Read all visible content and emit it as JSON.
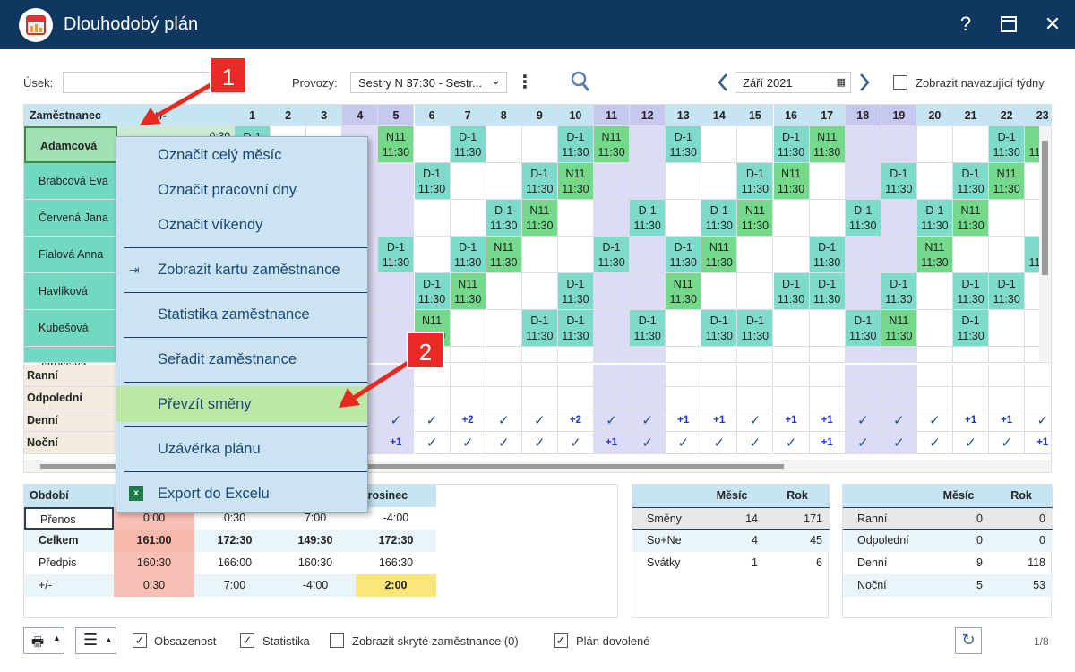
{
  "window": {
    "title": "Dlouhodobý plán",
    "help": "?",
    "maximize": "☐",
    "close": "✕"
  },
  "toolbar": {
    "usek_label": "Úsek:",
    "provozy_label": "Provozy:",
    "provozy_value": "Sestry N 37:30 - Sestr...",
    "more": "⋮",
    "month_value": "Září 2021",
    "follow_weeks": "Zobrazit navazující týdny"
  },
  "grid": {
    "corner": "Zaměstnanec",
    "col_diff": "+/-",
    "days": [
      "1",
      "2",
      "3",
      "4",
      "5",
      "6",
      "7",
      "8",
      "9",
      "10",
      "11",
      "12",
      "13",
      "14",
      "15",
      "16",
      "17",
      "18",
      "19",
      "20",
      "21",
      "22",
      "23"
    ],
    "weekend_days": [
      4,
      5,
      11,
      12,
      18,
      19
    ],
    "rows": [
      {
        "name": "Adamcová Jana",
        "diff": "0:30",
        "shifts": {
          "1": "D-1",
          "5": "N11",
          "7": "D-1",
          "10": "D-1",
          "11": "N11",
          "13": "D-1",
          "16": "D-1",
          "17": "N11",
          "22": "D-1",
          "23": "N"
        }
      },
      {
        "name": "Brabcová Eva",
        "diff": "",
        "shifts": {
          "6": "D-1",
          "9": "D-1",
          "10": "N11",
          "15": "D-1",
          "16": "N11",
          "19": "D-1",
          "21": "D-1",
          "22": "N11"
        }
      },
      {
        "name": "Červená Jana",
        "diff": "",
        "shifts": {
          "8": "D-1",
          "9": "N11",
          "12": "D-1",
          "14": "D-1",
          "15": "N11",
          "18": "D-1",
          "20": "D-1",
          "21": "N11"
        }
      },
      {
        "name": "Fialová Anna",
        "diff": "",
        "shifts": {
          "5": "D-1",
          "7": "D-1",
          "8": "N11",
          "11": "D-1",
          "13": "D-1",
          "14": "N11",
          "17": "D-1",
          "20": "N11",
          "23": "D"
        }
      },
      {
        "name": "Havlíková Lenka",
        "diff": "",
        "shifts": {
          "6": "D-1",
          "7": "N11",
          "10": "D-1",
          "13": "N11",
          "16": "D-1",
          "17": "D-1",
          "19": "D-1",
          "21": "D-1",
          "22": "D-1"
        }
      },
      {
        "name": "Kubešová Jaroslava",
        "diff": "",
        "shifts": {
          "6": "N11",
          "9": "D-1",
          "10": "D-1",
          "12": "D-1",
          "14": "D-1",
          "15": "D-1",
          "18": "D-1",
          "19": "N11",
          "21": "D-1"
        }
      }
    ],
    "time": "11:30",
    "summary_labels": [
      "Ranní",
      "Odpolední",
      "Denní",
      "Noční"
    ],
    "denni": [
      "",
      "",
      "",
      "✓",
      "✓",
      "✓",
      "+2",
      "✓",
      "✓",
      "+2",
      "✓",
      "✓",
      "+1",
      "+1",
      "✓",
      "+1",
      "+1",
      "✓",
      "✓",
      "✓",
      "+1",
      "+1",
      "✓"
    ],
    "nocni": [
      "",
      "",
      "",
      "",
      "+1",
      "✓",
      "✓",
      "✓",
      "✓",
      "✓",
      "+1",
      "✓",
      "✓",
      "✓",
      "✓",
      "✓",
      "+1",
      "✓",
      "✓",
      "✓",
      "✓",
      "✓",
      "+1"
    ]
  },
  "period": {
    "header": [
      "Období",
      "",
      "",
      "",
      "prosinec"
    ],
    "rows": [
      [
        "Přenos",
        "0:00",
        "0:30",
        "7:00",
        "-4:00"
      ],
      [
        "Celkem",
        "161:00",
        "172:30",
        "149:30",
        "172:30"
      ],
      [
        "Předpis",
        "160:30",
        "166:00",
        "160:30",
        "166:30"
      ],
      [
        "+/-",
        "0:30",
        "7:00",
        "-4:00",
        "2:00"
      ]
    ]
  },
  "stats1": {
    "header": [
      "",
      "Měsíc",
      "Rok"
    ],
    "rows": [
      [
        "Směny",
        "14",
        "171"
      ],
      [
        "So+Ne",
        "4",
        "45"
      ],
      [
        "Svátky",
        "1",
        "6"
      ]
    ]
  },
  "stats2": {
    "header": [
      "",
      "Měsíc",
      "Rok"
    ],
    "rows": [
      [
        "Ranní",
        "0",
        "0"
      ],
      [
        "Odpolední",
        "0",
        "0"
      ],
      [
        "Denní",
        "9",
        "118"
      ],
      [
        "Noční",
        "5",
        "53"
      ]
    ]
  },
  "context_menu": [
    "Označit celý měsíc",
    "Označit pracovní dny",
    "Označit víkendy",
    "Zobrazit kartu zaměstnance",
    "Statistika zaměstnance",
    "Seřadit zaměstnance",
    "Převzít směny",
    "Uzávěrka plánu",
    "Export do Excelu"
  ],
  "badges": [
    "1",
    "2"
  ],
  "bottom": {
    "obsazenost": "Obsazenost",
    "statistika": "Statistika",
    "hidden": "Zobrazit skryté zaměstnance (0)",
    "vacation": "Plán dovolené",
    "page": "1/8",
    "check": "✓"
  }
}
